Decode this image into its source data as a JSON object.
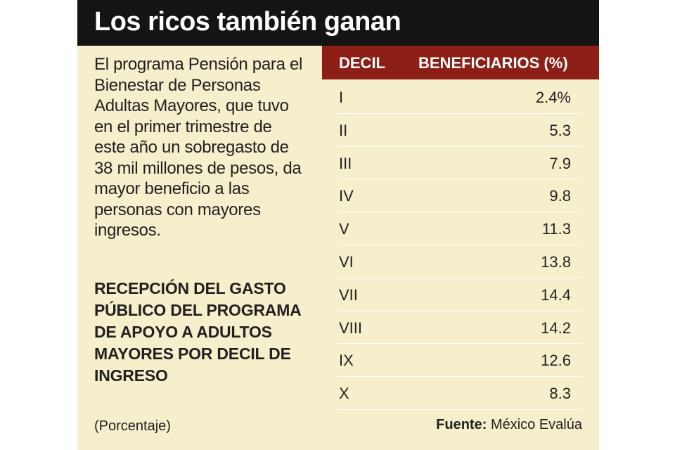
{
  "title": "Los ricos también ganan",
  "intro": "El programa Pensión para el Bienestar de Personas Adultas Mayores, que tuvo en el primer trimestre de este año un sobregasto de 38 mil millones de pesos, da mayor beneficio a las personas con mayores ingresos.",
  "subtitle": "RECEPCIÓN DEL GASTO PÚBLICO DEL PROGRAMA DE APOYO A ADULTOS MAYORES POR DECIL DE INGRESO",
  "unit": "(Porcentaje)",
  "table": {
    "headers": [
      "DECIL",
      "BENEFICIARIOS (%)"
    ],
    "rows": [
      [
        "I",
        "2.4%"
      ],
      [
        "II",
        "5.3"
      ],
      [
        "III",
        "7.9"
      ],
      [
        "IV",
        "9.8"
      ],
      [
        "V",
        "11.3"
      ],
      [
        "VI",
        "13.8"
      ],
      [
        "VII",
        "14.4"
      ],
      [
        "VIII",
        "14.2"
      ],
      [
        "IX",
        "12.6"
      ],
      [
        "X",
        "8.3"
      ]
    ]
  },
  "source": {
    "label": "Fuente:",
    "text": "México Evalúa"
  },
  "colors": {
    "title_bg": "#141414",
    "panel_bg": "#f5efcc",
    "header_bg": "#8d1f16"
  }
}
